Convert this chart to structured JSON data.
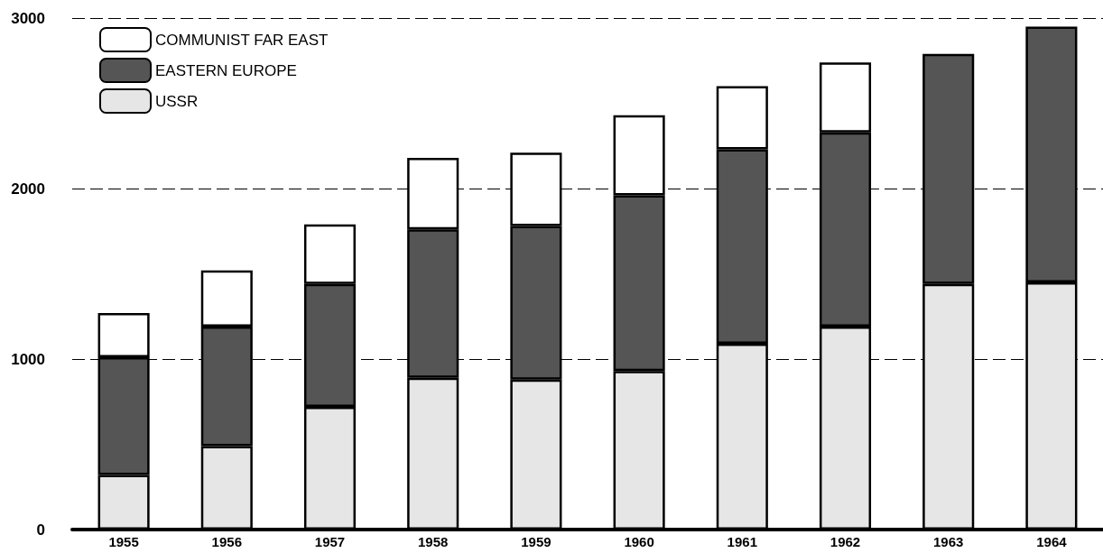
{
  "chart_data": {
    "type": "bar",
    "stacked": true,
    "categories": [
      "1955",
      "1956",
      "1957",
      "1958",
      "1959",
      "1960",
      "1961",
      "1962",
      "1963",
      "1964"
    ],
    "series": [
      {
        "name": "USSR",
        "color": "#e6e6e6",
        "values": [
          320,
          490,
          720,
          890,
          880,
          930,
          1090,
          1190,
          1440,
          1450
        ]
      },
      {
        "name": "EASTERN EUROPE",
        "color": "#555555",
        "values": [
          690,
          700,
          720,
          870,
          900,
          1030,
          1140,
          1140,
          1350,
          1500
        ]
      },
      {
        "name": "COMMUNIST FAR EAST",
        "color": "#ffffff",
        "values": [
          260,
          330,
          350,
          420,
          430,
          470,
          370,
          410,
          null,
          null
        ]
      }
    ],
    "ylim": [
      0,
      3000
    ],
    "yticks": [
      0,
      1000,
      2000,
      3000
    ],
    "grid": "y",
    "legend": "top left"
  }
}
